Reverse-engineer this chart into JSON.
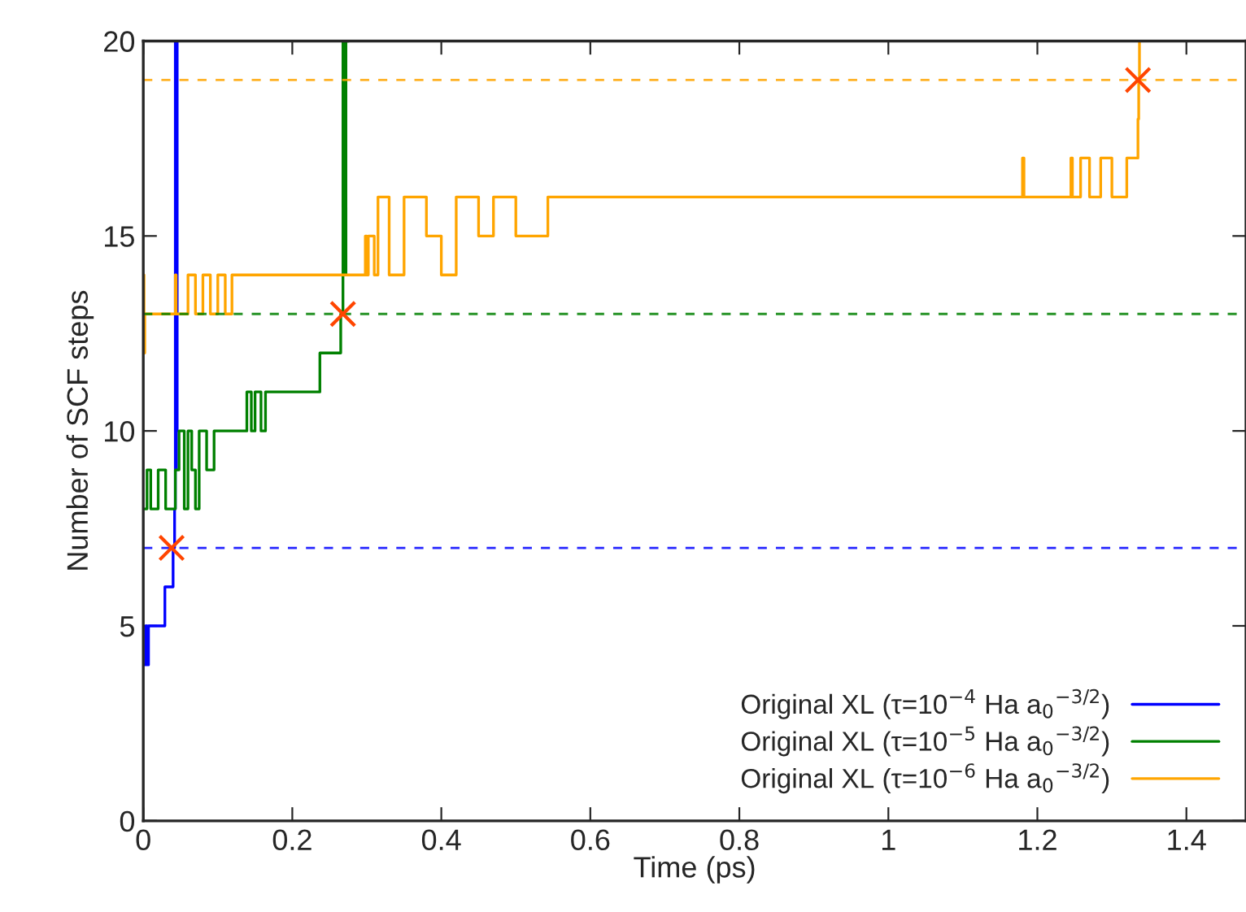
{
  "chart_data": {
    "type": "step",
    "xlabel": "Time (ps)",
    "ylabel": "Number of SCF steps",
    "xlim": [
      0,
      1.48
    ],
    "ylim": [
      0,
      20
    ],
    "xticks": [
      0,
      0.2,
      0.4,
      0.6,
      0.8,
      1,
      1.2,
      1.4
    ],
    "yticks": [
      0,
      5,
      10,
      15,
      20
    ],
    "grid": false,
    "legend": "bottom right",
    "line_style": "solid",
    "marker": "none",
    "series": [
      {
        "name": "Original XL (τ=10$^{−4}$ Ha a$_{0}$$^{−3/2}$)",
        "color": "#0000ff",
        "x": [
          0,
          0.003,
          0.005,
          0.007,
          0.029,
          0.04,
          0.042,
          0.043,
          0.044,
          0.0445,
          0.045,
          0.0455
        ],
        "values": [
          4,
          5,
          4,
          5,
          6,
          7,
          8,
          20,
          9,
          20,
          10,
          20
        ]
      },
      {
        "name": "Original XL (τ=10$^{−5}$ Ha a$_{0}$$^{−3/2}$)",
        "color": "#008000",
        "x": [
          0,
          0.005,
          0.01,
          0.02,
          0.03,
          0.043,
          0.048,
          0.055,
          0.06,
          0.065,
          0.07,
          0.075,
          0.085,
          0.095,
          0.106,
          0.139,
          0.145,
          0.15,
          0.158,
          0.164,
          0.237,
          0.265,
          0.268,
          0.27,
          0.272,
          0.276
        ],
        "values": [
          8,
          9,
          8,
          9,
          8,
          9,
          10,
          8,
          10,
          9,
          8,
          10,
          9,
          10,
          10,
          11,
          10,
          11,
          10,
          11,
          12,
          13,
          20,
          14,
          20,
          20
        ]
      },
      {
        "name": "Original XL (τ=10$^{−6}$ Ha a$_{0}$$^{−3/2}$)",
        "color": "#ffa500",
        "x": [
          0,
          0.001,
          0.002,
          0.043,
          0.044,
          0.06,
          0.07,
          0.08,
          0.09,
          0.1,
          0.11,
          0.119,
          0.298,
          0.3,
          0.302,
          0.31,
          0.315,
          0.33,
          0.35,
          0.38,
          0.4,
          0.42,
          0.45,
          0.47,
          0.5,
          0.543,
          1.18,
          1.182,
          1.245,
          1.247,
          1.258,
          1.27,
          1.285,
          1.3,
          1.32,
          1.335,
          1.336,
          1.337
        ],
        "values": [
          14,
          12,
          13,
          14,
          13,
          14,
          13,
          14,
          13,
          14,
          13,
          14,
          15,
          14,
          15,
          14,
          16,
          14,
          16,
          15,
          14,
          16,
          15,
          16,
          15,
          16,
          17,
          16,
          17,
          16,
          17,
          16,
          17,
          16,
          17,
          18,
          19,
          20
        ]
      },
      {
        "type": "scatter",
        "marker": "cross",
        "color": "#ff4500",
        "x": [
          0.038,
          0.268,
          1.335
        ],
        "values": [
          7,
          13,
          19
        ]
      }
    ],
    "ref_lines": [
      {
        "axis": "y",
        "value": 7,
        "color": "#0000ff",
        "line_style": "dashed"
      },
      {
        "axis": "y",
        "value": 13,
        "color": "#008000",
        "line_style": "dashed"
      },
      {
        "axis": "y",
        "value": 19,
        "color": "#ffa500",
        "line_style": "dashed"
      }
    ]
  }
}
